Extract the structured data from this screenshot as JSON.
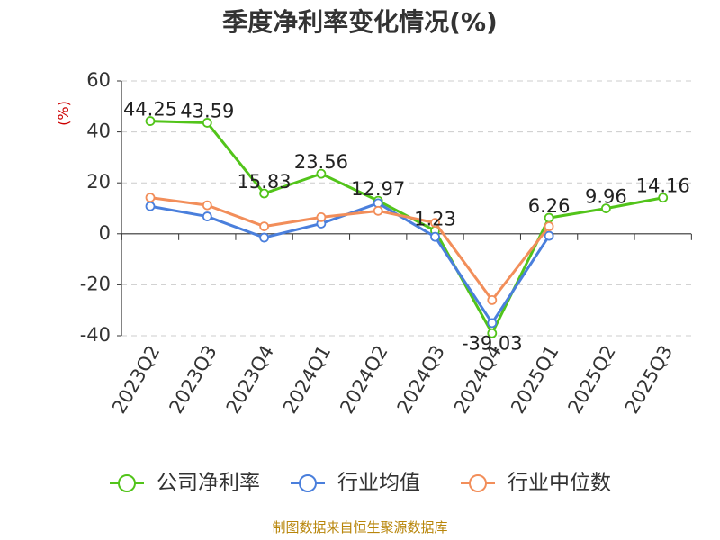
{
  "chart_data": {
    "type": "line",
    "title": "季度净利率变化情况(%)",
    "ylabel": "(%)",
    "xlabel": "",
    "ylim": [
      -40,
      60
    ],
    "yticks": [
      60,
      40,
      20,
      0,
      -20,
      -40
    ],
    "categories": [
      "2023Q2",
      "2023Q3",
      "2023Q4",
      "2024Q1",
      "2024Q2",
      "2024Q3",
      "2024Q4",
      "2025Q1",
      "2025Q2",
      "2025Q3"
    ],
    "series": [
      {
        "name": "公司净利率",
        "color": "#52c41a",
        "labeled": true,
        "values": [
          44.25,
          43.59,
          15.83,
          23.56,
          12.97,
          1.23,
          -39.03,
          6.26,
          9.96,
          14.16
        ],
        "labels": [
          "44.25",
          "43.59",
          "15.83",
          "23.56",
          "12.97",
          "1.23",
          "-39.03",
          "6.26",
          "9.96",
          "14.16"
        ]
      },
      {
        "name": "行业均值",
        "color": "#4a7fdc",
        "labeled": false,
        "values": [
          10.8,
          6.8,
          -1.5,
          4.0,
          12.0,
          -1.2,
          -35.0,
          -0.8,
          null,
          null
        ]
      },
      {
        "name": "行业中位数",
        "color": "#f28e5a",
        "labeled": false,
        "values": [
          14.2,
          11.2,
          2.9,
          6.5,
          9.0,
          4.3,
          -26.0,
          2.9,
          null,
          null
        ]
      }
    ],
    "grid": true,
    "legend_position": "bottom"
  },
  "source": "制图数据来自恒生聚源数据库"
}
